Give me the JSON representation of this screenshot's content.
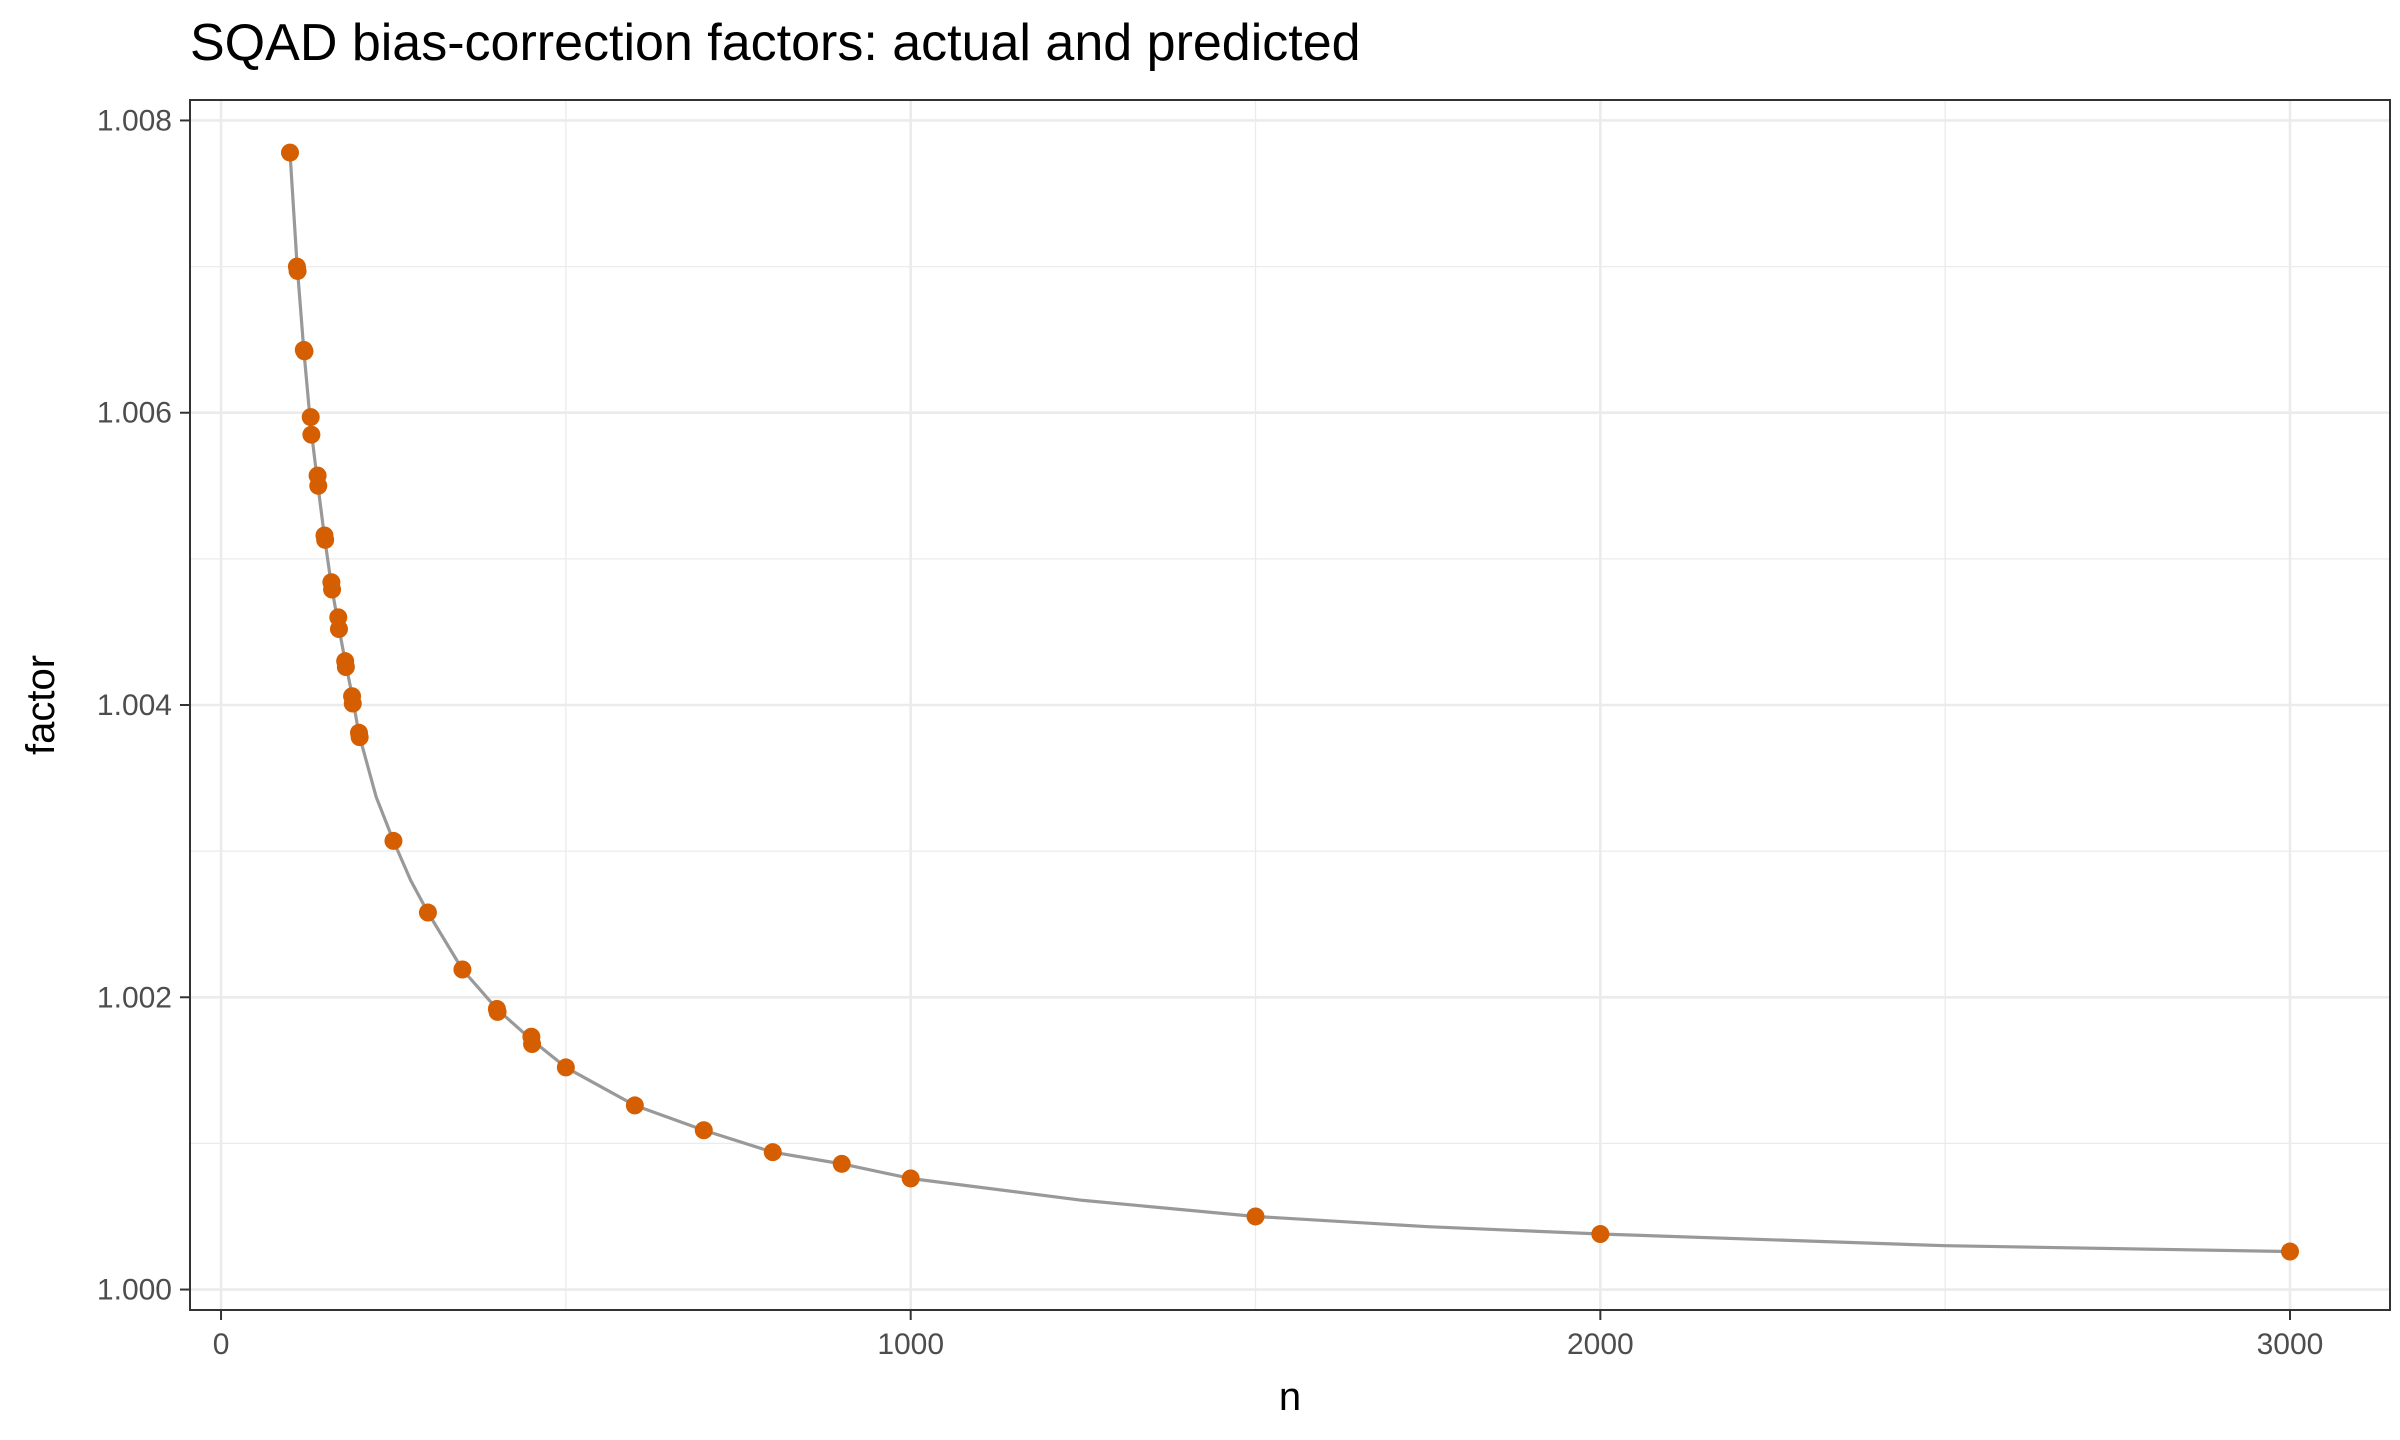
{
  "chart_data": {
    "type": "scatter",
    "title": "SQAD bias-correction factors: actual and predicted",
    "xlabel": "n",
    "ylabel": "factor",
    "xlim": [
      -45,
      3145
    ],
    "ylim": [
      0.99986,
      1.00814
    ],
    "x_ticks": [
      0,
      1000,
      2000,
      3000
    ],
    "x_tick_labels": [
      "0",
      "1000",
      "2000",
      "3000"
    ],
    "x_minor_ticks": [
      500,
      1500,
      2500
    ],
    "y_ticks": [
      1.0,
      1.002,
      1.004,
      1.006,
      1.008
    ],
    "y_tick_labels": [
      "1.000",
      "1.002",
      "1.004",
      "1.006",
      "1.008"
    ],
    "y_minor_ticks": [
      1.001,
      1.003,
      1.005,
      1.007
    ],
    "grid": true,
    "legend": "none",
    "colors": {
      "points": "#d55e00",
      "fitted_curve": "#999999",
      "grid": "#ebebeb",
      "panel_border": "#333333"
    },
    "series": [
      {
        "type": "scatter",
        "x": [
          100,
          110,
          111,
          120,
          121,
          130,
          131,
          140,
          141,
          150,
          151,
          160,
          161,
          170,
          171,
          180,
          181,
          190,
          191,
          200,
          201,
          250,
          300,
          350,
          400,
          401,
          450,
          451,
          500,
          600,
          700,
          800,
          900,
          1000,
          1500,
          2000,
          3000
        ],
        "y": [
          1.00778,
          1.007,
          1.00697,
          1.00643,
          1.00642,
          1.00597,
          1.00585,
          1.00557,
          1.0055,
          1.00516,
          1.00513,
          1.00484,
          1.00479,
          1.0046,
          1.00452,
          1.0043,
          1.00426,
          1.00406,
          1.00401,
          1.00381,
          1.00378,
          1.00307,
          1.00258,
          1.00219,
          1.00192,
          1.0019,
          1.00173,
          1.00168,
          1.00152,
          1.00126,
          1.00109,
          1.00094,
          1.00086,
          1.00076,
          1.0005,
          1.00038,
          1.00026
        ]
      },
      {
        "type": "line",
        "x": [
          100,
          110,
          120,
          130,
          140,
          150,
          160,
          170,
          180,
          190,
          200,
          225,
          250,
          275,
          300,
          350,
          400,
          450,
          500,
          600,
          700,
          800,
          900,
          1000,
          1250,
          1500,
          1750,
          2000,
          2500,
          3000
        ],
        "y": [
          1.00778,
          1.00703,
          1.00643,
          1.00591,
          1.00552,
          1.00515,
          1.00482,
          1.00455,
          1.0043,
          1.00407,
          1.0038,
          1.00337,
          1.00307,
          1.0028,
          1.00258,
          1.00219,
          1.00192,
          1.00171,
          1.00152,
          1.00126,
          1.00109,
          1.00094,
          1.00086,
          1.00076,
          1.00061,
          1.0005,
          1.00043,
          1.00038,
          1.0003,
          1.00026
        ]
      }
    ]
  }
}
